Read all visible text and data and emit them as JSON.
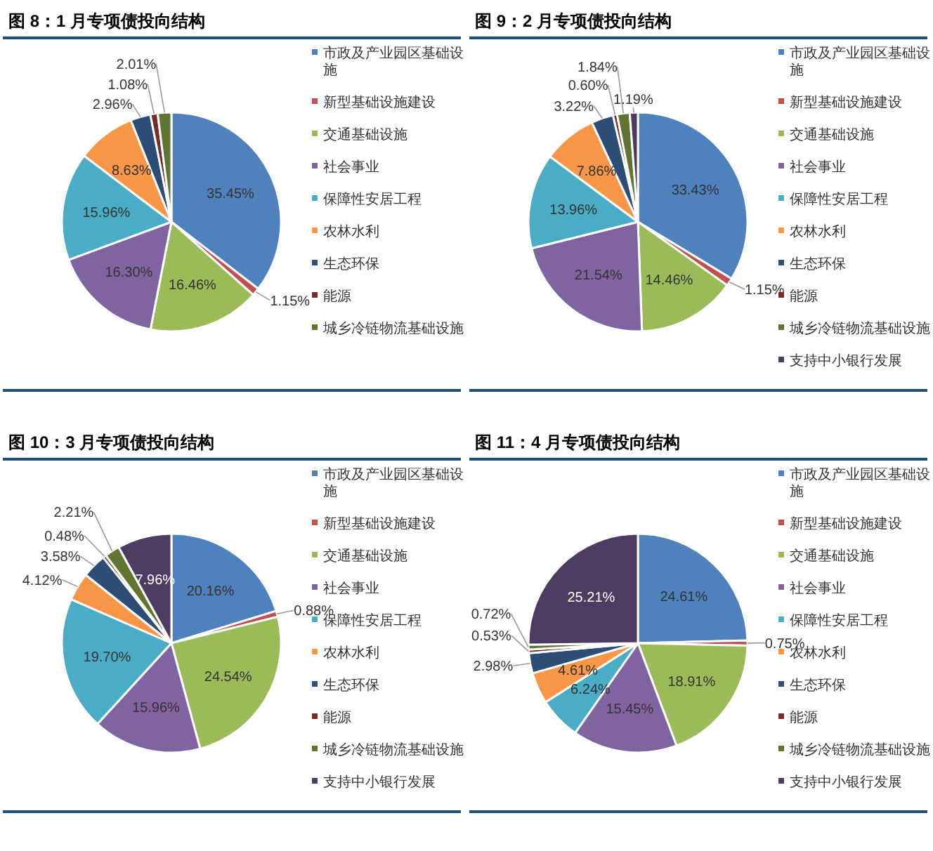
{
  "chart_data": [
    {
      "type": "pie",
      "title": "图 8：1 月专项债投向结构",
      "categories": [
        "市政及产业园区基础设施",
        "新型基础设施建设",
        "交通基础设施",
        "社会事业",
        "保障性安居工程",
        "农林水利",
        "生态环保",
        "能源",
        "城乡冷链物流基础设施"
      ],
      "values": [
        35.45,
        1.15,
        16.46,
        16.3,
        15.96,
        8.63,
        2.96,
        1.08,
        2.01
      ],
      "value_labels": [
        "35.45%",
        "1.15%",
        "16.46%",
        "16.30%",
        "15.96%",
        "8.63%",
        "2.96%",
        "1.08%",
        "2.01%"
      ],
      "colors": [
        "#4f81bd",
        "#c0504d",
        "#9bbb59",
        "#8064a2",
        "#4bacc6",
        "#f79646",
        "#2c4d75",
        "#772c2a",
        "#5f7530"
      ],
      "legend": "right"
    },
    {
      "type": "pie",
      "title": "图 9：2 月专项债投向结构",
      "categories": [
        "市政及产业园区基础设施",
        "新型基础设施建设",
        "交通基础设施",
        "社会事业",
        "保障性安居工程",
        "农林水利",
        "生态环保",
        "能源",
        "城乡冷链物流基础设施",
        "支持中小银行发展"
      ],
      "values": [
        33.43,
        1.15,
        14.46,
        21.54,
        13.96,
        7.86,
        3.22,
        0.6,
        1.84,
        1.19
      ],
      "value_labels": [
        "33.43%",
        "1.15%",
        "14.46%",
        "21.54%",
        "13.96%",
        "7.86%",
        "3.22%",
        "0.60%",
        "1.84%",
        "1.19%"
      ],
      "colors": [
        "#4f81bd",
        "#c0504d",
        "#9bbb59",
        "#8064a2",
        "#4bacc6",
        "#f79646",
        "#2c4d75",
        "#772c2a",
        "#5f7530",
        "#4d3b62"
      ],
      "legend": "right"
    },
    {
      "type": "pie",
      "title": "图 10：3 月专项债投向结构",
      "categories": [
        "市政及产业园区基础设施",
        "新型基础设施建设",
        "交通基础设施",
        "社会事业",
        "保障性安居工程",
        "农林水利",
        "生态环保",
        "能源",
        "城乡冷链物流基础设施",
        "支持中小银行发展"
      ],
      "values": [
        20.16,
        0.88,
        24.54,
        15.96,
        19.7,
        4.12,
        3.58,
        0.48,
        2.21,
        7.96
      ],
      "value_labels": [
        "20.16%",
        "0.88%",
        "24.54%",
        "15.96%",
        "19.70%",
        "4.12%",
        "3.58%",
        "0.48%",
        "2.21%",
        "7.96%"
      ],
      "colors": [
        "#4f81bd",
        "#c0504d",
        "#9bbb59",
        "#8064a2",
        "#4bacc6",
        "#f79646",
        "#2c4d75",
        "#772c2a",
        "#5f7530",
        "#4d3b62"
      ],
      "legend": "right"
    },
    {
      "type": "pie",
      "title": "图 11：4 月专项债投向结构",
      "categories": [
        "市政及产业园区基础设施",
        "新型基础设施建设",
        "交通基础设施",
        "社会事业",
        "保障性安居工程",
        "农林水利",
        "生态环保",
        "能源",
        "城乡冷链物流基础设施",
        "支持中小银行发展"
      ],
      "values": [
        24.61,
        0.75,
        18.91,
        15.45,
        6.24,
        4.61,
        2.98,
        0.53,
        0.72,
        25.21
      ],
      "value_labels": [
        "24.61%",
        "0.75%",
        "18.91%",
        "15.45%",
        "6.24%",
        "4.61%",
        "2.98%",
        "0.53%",
        "0.72%",
        "25.21%"
      ],
      "colors": [
        "#4f81bd",
        "#c0504d",
        "#9bbb59",
        "#8064a2",
        "#4bacc6",
        "#f79646",
        "#2c4d75",
        "#772c2a",
        "#5f7530",
        "#4d3b62"
      ],
      "legend": "right"
    }
  ]
}
